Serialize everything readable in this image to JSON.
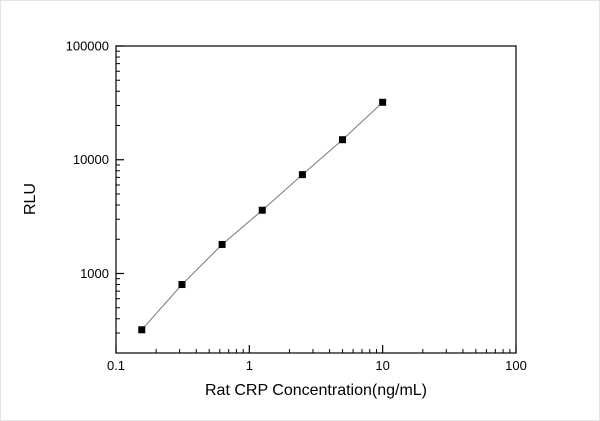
{
  "chart_data": {
    "type": "scatter",
    "title": "",
    "xlabel": "Rat CRP Concentration(ng/mL)",
    "ylabel": "RLU",
    "x_scale": "log",
    "y_scale": "log",
    "xlim": [
      0.1,
      100
    ],
    "ylim": [
      200,
      100000
    ],
    "grid": false,
    "legend": null,
    "x": [
      0.156,
      0.3125,
      0.625,
      1.25,
      2.5,
      5,
      10
    ],
    "y": [
      320,
      800,
      1800,
      3600,
      7400,
      15000,
      32000
    ],
    "x_major_ticks": [
      0.1,
      1,
      10,
      100
    ],
    "x_tick_labels": [
      "0.1",
      "1",
      "10",
      "100"
    ],
    "y_major_ticks": [
      1000,
      10000,
      100000
    ],
    "y_tick_labels": [
      "1000",
      "10000",
      "100000"
    ],
    "marker": "square",
    "marker_color": "#000000",
    "line_color": "#7a7a7a",
    "frame_color": "#000000"
  }
}
